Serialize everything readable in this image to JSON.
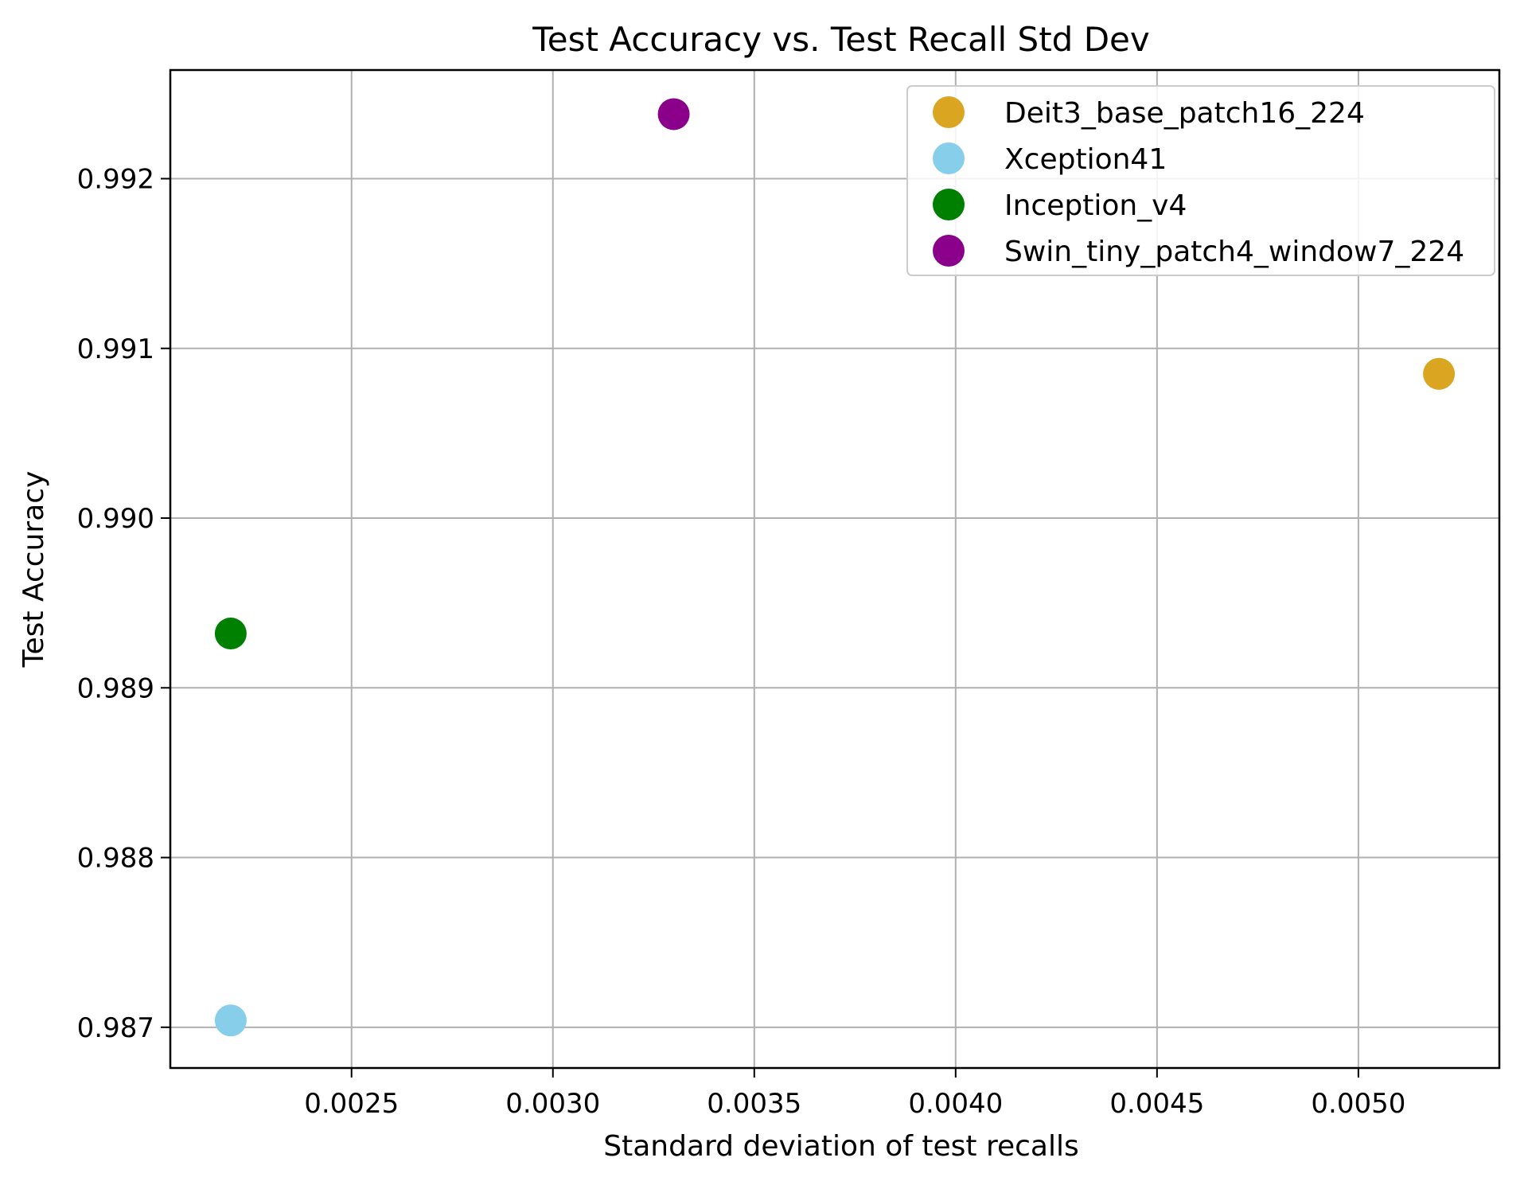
{
  "chart_data": {
    "type": "scatter",
    "title": "Test Accuracy vs. Test Recall Std Dev",
    "xlabel": "Standard deviation of test recalls",
    "ylabel": "Test Accuracy",
    "xlim": [
      0.00205,
      0.00535
    ],
    "ylim": [
      0.98676,
      0.99264
    ],
    "x_ticks": [
      0.0025,
      0.003,
      0.0035,
      0.004,
      0.0045,
      0.005
    ],
    "x_tick_labels": [
      "0.0025",
      "0.0030",
      "0.0035",
      "0.0040",
      "0.0045",
      "0.0050"
    ],
    "y_ticks": [
      0.987,
      0.988,
      0.989,
      0.99,
      0.991,
      0.992
    ],
    "y_tick_labels": [
      "0.987",
      "0.988",
      "0.989",
      "0.990",
      "0.991",
      "0.992"
    ],
    "grid": true,
    "legend_position": "top-right",
    "series": [
      {
        "name": "Deit3_base_patch16_224",
        "color": "#DAA520",
        "x": [
          0.0052
        ],
        "y": [
          0.99085
        ]
      },
      {
        "name": "Xception41",
        "color": "#87CEEB",
        "x": [
          0.0022
        ],
        "y": [
          0.98704
        ]
      },
      {
        "name": "Inception_v4",
        "color": "#008000",
        "x": [
          0.0022
        ],
        "y": [
          0.98932
        ]
      },
      {
        "name": "Swin_tiny_patch4_window7_224",
        "color": "#8B008B",
        "x": [
          0.0033
        ],
        "y": [
          0.99238
        ]
      }
    ]
  }
}
